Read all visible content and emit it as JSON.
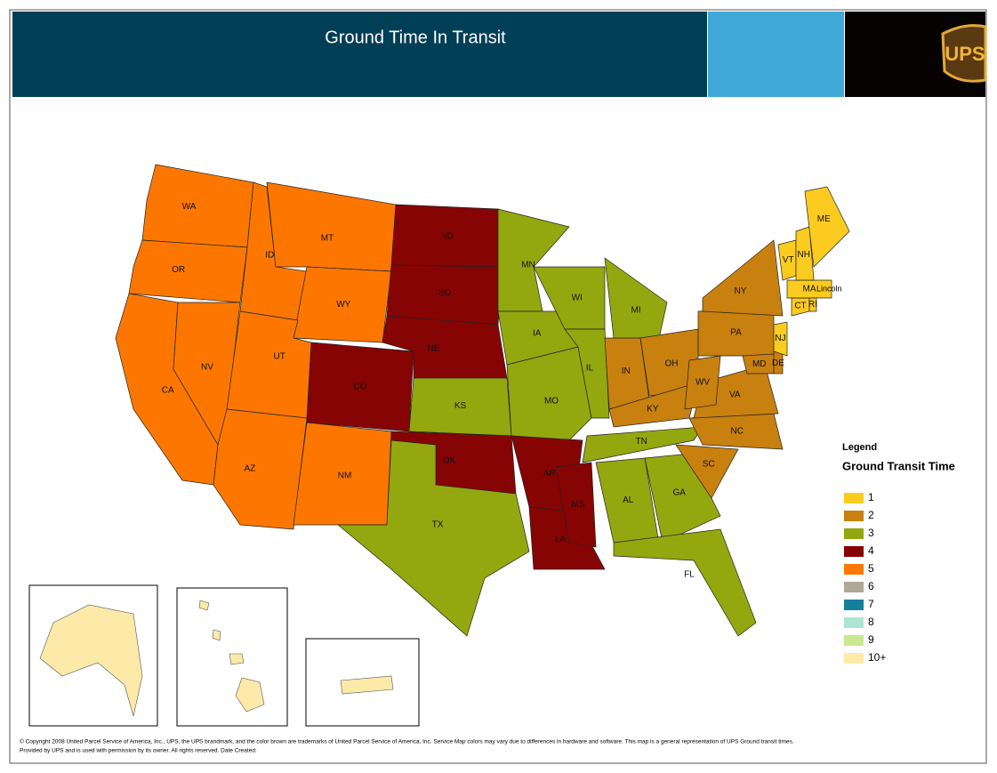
{
  "header": {
    "title": "Ground Time In Transit",
    "logo": "UPS"
  },
  "origin": "Lincoln",
  "legend": {
    "title": "Legend",
    "subtitle": "Ground Transit Time",
    "items": [
      {
        "label": "1",
        "color": "#fccb1f"
      },
      {
        "label": "2",
        "color": "#c8800e"
      },
      {
        "label": "3",
        "color": "#93a70f"
      },
      {
        "label": "4",
        "color": "#870404"
      },
      {
        "label": "5",
        "color": "#fd7700"
      },
      {
        "label": "6",
        "color": "#b0a797"
      },
      {
        "label": "7",
        "color": "#16809a"
      },
      {
        "label": "8",
        "color": "#aee4d4"
      },
      {
        "label": "9",
        "color": "#c9e890"
      },
      {
        "label": "10+",
        "color": "#fde9a8"
      }
    ]
  },
  "states": [
    {
      "label": "WA",
      "days": 5
    },
    {
      "label": "OR",
      "days": 5
    },
    {
      "label": "CA",
      "days": 5
    },
    {
      "label": "NV",
      "days": 5
    },
    {
      "label": "ID",
      "days": 5
    },
    {
      "label": "MT",
      "days": 5
    },
    {
      "label": "WY",
      "days": 5
    },
    {
      "label": "UT",
      "days": 5
    },
    {
      "label": "AZ",
      "days": 5
    },
    {
      "label": "CO",
      "days": 4
    },
    {
      "label": "NM",
      "days": 5
    },
    {
      "label": "ND",
      "days": 4
    },
    {
      "label": "SD",
      "days": 4
    },
    {
      "label": "NE",
      "days": 4
    },
    {
      "label": "KS",
      "days": 3
    },
    {
      "label": "OK",
      "days": 4
    },
    {
      "label": "TX",
      "days": 3
    },
    {
      "label": "MN",
      "days": 3
    },
    {
      "label": "IA",
      "days": 3
    },
    {
      "label": "MO",
      "days": 3
    },
    {
      "label": "AR",
      "days": 4
    },
    {
      "label": "LA",
      "days": 4
    },
    {
      "label": "WI",
      "days": 3
    },
    {
      "label": "IL",
      "days": 3
    },
    {
      "label": "MI",
      "days": 3
    },
    {
      "label": "IN",
      "days": 2
    },
    {
      "label": "OH",
      "days": 2
    },
    {
      "label": "KY",
      "days": 2
    },
    {
      "label": "TN",
      "days": 3
    },
    {
      "label": "MS",
      "days": 4
    },
    {
      "label": "AL",
      "days": 3
    },
    {
      "label": "GA",
      "days": 3
    },
    {
      "label": "FL",
      "days": 3
    },
    {
      "label": "SC",
      "days": 2
    },
    {
      "label": "NC",
      "days": 2
    },
    {
      "label": "VA",
      "days": 2
    },
    {
      "label": "WV",
      "days": 2
    },
    {
      "label": "PA",
      "days": 2
    },
    {
      "label": "NY",
      "days": 2
    },
    {
      "label": "MD",
      "days": 2
    },
    {
      "label": "DE",
      "days": 2
    },
    {
      "label": "NJ",
      "days": 1
    },
    {
      "label": "CT",
      "days": 1
    },
    {
      "label": "MA",
      "days": 1
    },
    {
      "label": "RI",
      "days": 1
    },
    {
      "label": "VT",
      "days": 1
    },
    {
      "label": "NH",
      "days": 1
    },
    {
      "label": "ME",
      "days": 1
    }
  ],
  "footer": {
    "line1": "© Copyright 2008 United Parcel Service of America, Inc., UPS, the UPS brandmark, and the color brown are trademarks of United Parcel Service of America, Inc. Service Map colors may vary due to differences in hardware and software. This map is a general representation of UPS Ground transit times.",
    "line2": "Provided by UPS and is used with permission by its owner. All rights reserved. Date Created:"
  }
}
